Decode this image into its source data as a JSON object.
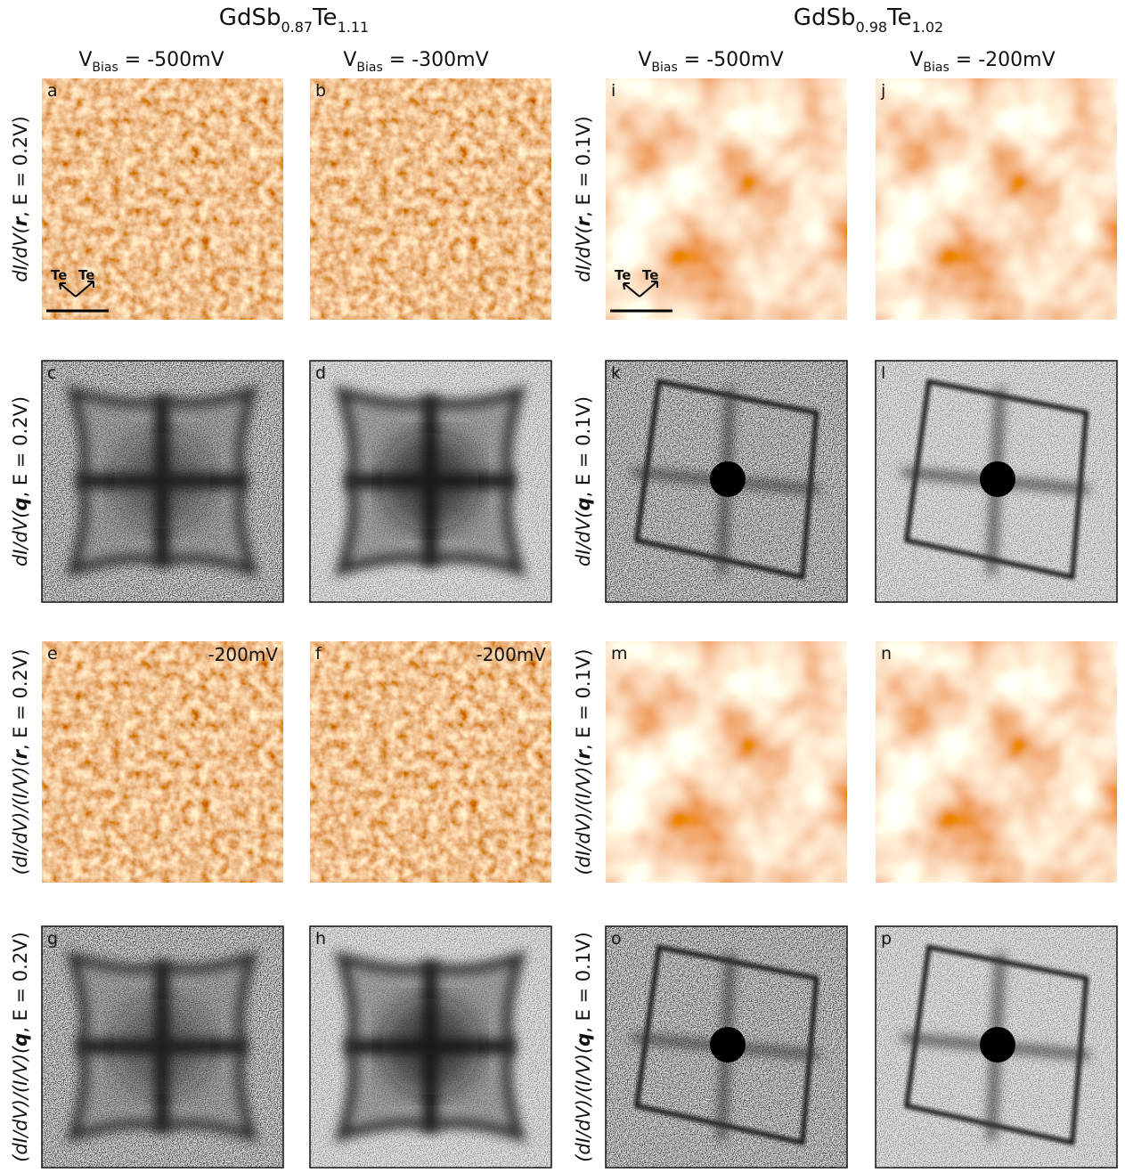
{
  "columns": [
    {
      "base": "GdSb",
      "x": "0.87",
      "te": "Te",
      "y": "1.11"
    },
    {
      "base": "GdSb",
      "x": "0.98",
      "te": "Te",
      "y": "1.02"
    }
  ],
  "bias_labels": [
    {
      "v": "V",
      "sub": "Bias",
      "rest": " = -500mV"
    },
    {
      "v": "V",
      "sub": "Bias",
      "rest": " = -300mV"
    },
    {
      "v": "V",
      "sub": "Bias",
      "rest": " = -500mV"
    },
    {
      "v": "V",
      "sub": "Bias",
      "rest": " = -200mV"
    }
  ],
  "row_labels": [
    [
      {
        "pre": "dI/dV(",
        "var": "r",
        "post": ", E = 0.2V)"
      },
      {
        "pre": "dI/dV(",
        "var": "r",
        "post": ", E = 0.1V)"
      }
    ],
    [
      {
        "pre": "dI/dV(",
        "var": "q",
        "post": ", E = 0.2V)"
      },
      {
        "pre": "dI/dV(",
        "var": "q",
        "post": ", E = 0.1V)"
      }
    ],
    [
      {
        "pre": "(dI/dV)/(I/V)(",
        "var": "r",
        "post": ", E = 0.2V)"
      },
      {
        "pre": "(dI/dV)/(I/V)(",
        "var": "r",
        "post": ", E = 0.1V)"
      }
    ],
    [
      {
        "pre": "(dI/dV)/(I/V)(",
        "var": "q",
        "post": ", E = 0.2V)"
      },
      {
        "pre": "(dI/dV)/(I/V)(",
        "var": "q",
        "post": ", E = 0.1V)"
      }
    ]
  ],
  "panels": [
    [
      {
        "letter": "a",
        "lattice": [
          "Te",
          "Te"
        ]
      },
      {
        "letter": "b"
      },
      {
        "letter": "i",
        "lattice": [
          "Te",
          "Te"
        ]
      },
      {
        "letter": "j"
      }
    ],
    [
      {
        "letter": "c"
      },
      {
        "letter": "d"
      },
      {
        "letter": "k"
      },
      {
        "letter": "l"
      }
    ],
    [
      {
        "letter": "e",
        "note": "-200mV"
      },
      {
        "letter": "f",
        "note": "-200mV"
      },
      {
        "letter": "m"
      },
      {
        "letter": "n"
      }
    ],
    [
      {
        "letter": "g"
      },
      {
        "letter": "h"
      },
      {
        "letter": "o"
      },
      {
        "letter": "p"
      }
    ]
  ]
}
